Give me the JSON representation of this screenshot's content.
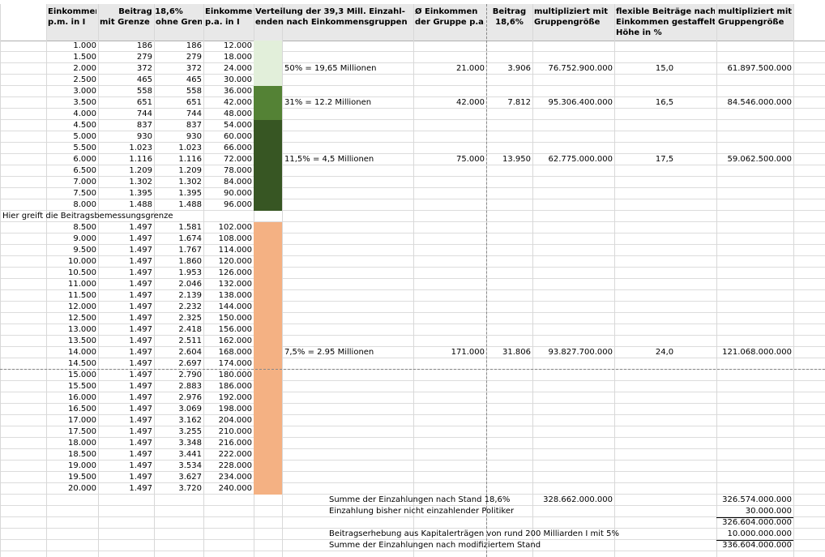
{
  "header": {
    "income_pm": [
      "Einkommen",
      "p.m. in I"
    ],
    "contribution": "Beitrag 18,6%",
    "capped": "mit Grenze",
    "uncapped": "ohne Grenze",
    "income_pa": [
      "Einkommen",
      "p.a. in I"
    ],
    "distribution": [
      "Verteilung der 39,3 Mill. Einzahl-",
      "enden nach Einkommensgruppen"
    ],
    "avg_income": [
      "Ø Einkommen",
      "der Gruppe p.a."
    ],
    "group_contribution": [
      "Beitrag",
      "18,6%"
    ],
    "total": [
      "multipliziert mit",
      "Gruppengröße"
    ],
    "flex_rate": [
      "flexible Beiträge nach",
      "Einkommen gestaffelt",
      "Höhe in %"
    ],
    "flex_total": [
      "multipliziert mit",
      "Gruppengröße"
    ]
  },
  "rows": [
    {
      "income_pm": "1.000",
      "capped": "186",
      "uncapped": "186",
      "income_pa": "12.000",
      "band": "#e2efda"
    },
    {
      "income_pm": "1.500",
      "capped": "279",
      "uncapped": "279",
      "income_pa": "18.000",
      "band": "#e2efda"
    },
    {
      "income_pm": "2.000",
      "capped": "372",
      "uncapped": "372",
      "income_pa": "24.000",
      "band": "#e2efda",
      "group": {
        "share": "50% = 19,65 Millionen",
        "avg_income": "21.000",
        "contribution": "3.906",
        "total": "76.752.900.000",
        "flex_rate": "15,0",
        "flex_total": "61.897.500.000"
      }
    },
    {
      "income_pm": "2.500",
      "capped": "465",
      "uncapped": "465",
      "income_pa": "30.000",
      "band": "#e2efda"
    },
    {
      "income_pm": "3.000",
      "capped": "558",
      "uncapped": "558",
      "income_pa": "36.000",
      "band": "#548235"
    },
    {
      "income_pm": "3.500",
      "capped": "651",
      "uncapped": "651",
      "income_pa": "42.000",
      "band": "#548235",
      "group": {
        "share": "31% = 12.2 Millionen",
        "avg_income": "42.000",
        "contribution": "7.812",
        "total": "95.306.400.000",
        "flex_rate": "16,5",
        "flex_total": "84.546.000.000"
      }
    },
    {
      "income_pm": "4.000",
      "capped": "744",
      "uncapped": "744",
      "income_pa": "48.000",
      "band": "#548235"
    },
    {
      "income_pm": "4.500",
      "capped": "837",
      "uncapped": "837",
      "income_pa": "54.000",
      "band": "#375623"
    },
    {
      "income_pm": "5.000",
      "capped": "930",
      "uncapped": "930",
      "income_pa": "60.000",
      "band": "#375623"
    },
    {
      "income_pm": "5.500",
      "capped": "1.023",
      "uncapped": "1.023",
      "income_pa": "66.000",
      "band": "#375623"
    },
    {
      "income_pm": "6.000",
      "capped": "1.116",
      "uncapped": "1.116",
      "income_pa": "72.000",
      "band": "#375623",
      "group": {
        "share": "11,5% = 4,5 Millionen",
        "avg_income": "75.000",
        "contribution": "13.950",
        "total": "62.775.000.000",
        "flex_rate": "17,5",
        "flex_total": "59.062.500.000"
      }
    },
    {
      "income_pm": "6.500",
      "capped": "1.209",
      "uncapped": "1.209",
      "income_pa": "78.000",
      "band": "#375623"
    },
    {
      "income_pm": "7.000",
      "capped": "1.302",
      "uncapped": "1.302",
      "income_pa": "84.000",
      "band": "#375623"
    },
    {
      "income_pm": "7.500",
      "capped": "1.395",
      "uncapped": "1.395",
      "income_pa": "90.000",
      "band": "#375623"
    },
    {
      "income_pm": "8.000",
      "capped": "1.488",
      "uncapped": "1.488",
      "income_pa": "96.000",
      "band": "#375623"
    },
    {
      "note": "Hier greift die Beitragsbemessungsgrenze"
    },
    {
      "income_pm": "8.500",
      "capped": "1.497",
      "uncapped": "1.581",
      "income_pa": "102.000",
      "band": "#f4b183"
    },
    {
      "income_pm": "9.000",
      "capped": "1.497",
      "uncapped": "1.674",
      "income_pa": "108.000",
      "band": "#f4b183"
    },
    {
      "income_pm": "9.500",
      "capped": "1.497",
      "uncapped": "1.767",
      "income_pa": "114.000",
      "band": "#f4b183"
    },
    {
      "income_pm": "10.000",
      "capped": "1.497",
      "uncapped": "1.860",
      "income_pa": "120.000",
      "band": "#f4b183"
    },
    {
      "income_pm": "10.500",
      "capped": "1.497",
      "uncapped": "1.953",
      "income_pa": "126.000",
      "band": "#f4b183"
    },
    {
      "income_pm": "11.000",
      "capped": "1.497",
      "uncapped": "2.046",
      "income_pa": "132.000",
      "band": "#f4b183"
    },
    {
      "income_pm": "11.500",
      "capped": "1.497",
      "uncapped": "2.139",
      "income_pa": "138.000",
      "band": "#f4b183"
    },
    {
      "income_pm": "12.000",
      "capped": "1.497",
      "uncapped": "2.232",
      "income_pa": "144.000",
      "band": "#f4b183"
    },
    {
      "income_pm": "12.500",
      "capped": "1.497",
      "uncapped": "2.325",
      "income_pa": "150.000",
      "band": "#f4b183"
    },
    {
      "income_pm": "13.000",
      "capped": "1.497",
      "uncapped": "2.418",
      "income_pa": "156.000",
      "band": "#f4b183"
    },
    {
      "income_pm": "13.500",
      "capped": "1.497",
      "uncapped": "2.511",
      "income_pa": "162.000",
      "band": "#f4b183"
    },
    {
      "income_pm": "14.000",
      "capped": "1.497",
      "uncapped": "2.604",
      "income_pa": "168.000",
      "band": "#f4b183",
      "group": {
        "share": "7,5% = 2.95 Millionen",
        "avg_income": "171.000",
        "contribution": "31.806",
        "total": "93.827.700.000",
        "flex_rate": "24,0",
        "flex_total": "121.068.000.000"
      }
    },
    {
      "income_pm": "14.500",
      "capped": "1.497",
      "uncapped": "2.697",
      "income_pa": "174.000",
      "band": "#f4b183"
    },
    {
      "income_pm": "15.000",
      "capped": "1.497",
      "uncapped": "2.790",
      "income_pa": "180.000",
      "band": "#f4b183"
    },
    {
      "income_pm": "15.500",
      "capped": "1.497",
      "uncapped": "2.883",
      "income_pa": "186.000",
      "band": "#f4b183"
    },
    {
      "income_pm": "16.000",
      "capped": "1.497",
      "uncapped": "2.976",
      "income_pa": "192.000",
      "band": "#f4b183"
    },
    {
      "income_pm": "16.500",
      "capped": "1.497",
      "uncapped": "3.069",
      "income_pa": "198.000",
      "band": "#f4b183"
    },
    {
      "income_pm": "17.000",
      "capped": "1.497",
      "uncapped": "3.162",
      "income_pa": "204.000",
      "band": "#f4b183"
    },
    {
      "income_pm": "17.500",
      "capped": "1.497",
      "uncapped": "3.255",
      "income_pa": "210.000",
      "band": "#f4b183"
    },
    {
      "income_pm": "18.000",
      "capped": "1.497",
      "uncapped": "3.348",
      "income_pa": "216.000",
      "band": "#f4b183"
    },
    {
      "income_pm": "18.500",
      "capped": "1.497",
      "uncapped": "3.441",
      "income_pa": "222.000",
      "band": "#f4b183"
    },
    {
      "income_pm": "19.000",
      "capped": "1.497",
      "uncapped": "3.534",
      "income_pa": "228.000",
      "band": "#f4b183"
    },
    {
      "income_pm": "19.500",
      "capped": "1.497",
      "uncapped": "3.627",
      "income_pa": "234.000",
      "band": "#f4b183"
    },
    {
      "income_pm": "20.000",
      "capped": "1.497",
      "uncapped": "3.720",
      "income_pa": "240.000",
      "band": "#f4b183"
    }
  ],
  "summary": [
    {
      "label": "Summe der Einzahlungen nach Stand 18,6%",
      "total": "328.662.000.000",
      "flex_total": "326.574.000.000"
    },
    {
      "label": "Einzahlung bisher nicht einzahlender Politiker",
      "flex_total": "30.000.000"
    },
    {
      "flex_total": "326.604.000.000",
      "rule": true
    },
    {
      "label": "Beitragserhebung aus Kapitalerträgen von rund 200 Milliarden I mit 5%",
      "flex_total": "10.000.000.000"
    },
    {
      "label": "Summe der Einzahlungen nach modifiziertem Stand",
      "flex_total": "336.604.000.000",
      "rule": true
    }
  ]
}
